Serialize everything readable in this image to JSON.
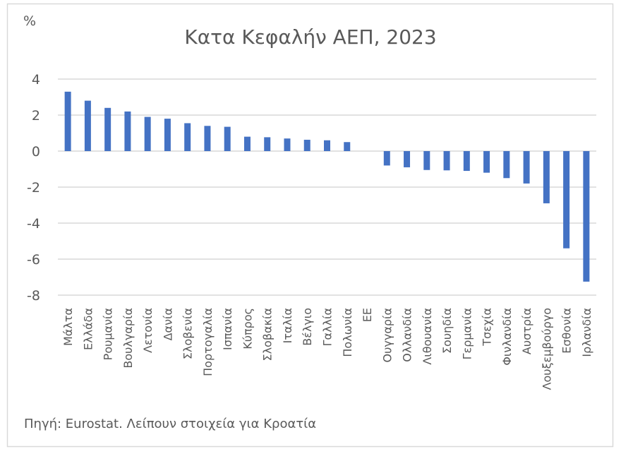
{
  "chart_data": {
    "type": "bar",
    "title": "Κατα Κεφαλήν ΑΕΠ, 2023",
    "ylabel": "%",
    "xlabel": "",
    "ylim": [
      -8,
      4
    ],
    "yticks": [
      4,
      2,
      0,
      -2,
      -4,
      -6,
      -8
    ],
    "grid": true,
    "bar_color": "#4472C4",
    "categories": [
      "Μάλτα",
      "Ελλάδα",
      "Ρουμανία",
      "Βουλγαρία",
      "Λετονία",
      "Δανία",
      "Σλοβενία",
      "Πορτογαλία",
      "Ισπανία",
      "Κύπρος",
      "Σλοβακία",
      "Ιταλία",
      "Βέλγιο",
      "Γαλλία",
      "Πολωνία",
      "ΕΕ",
      "Ουγγαρία",
      "Ολλανδία",
      "Λιθουανία",
      "Σουηδία",
      "Γερμανία",
      "Τσεχία",
      "Φινλανδία",
      "Αυστρία",
      "Λουξεμβούργο",
      "Εσθονία",
      "Ιρλανδία"
    ],
    "values": [
      3.3,
      2.8,
      2.4,
      2.2,
      1.9,
      1.8,
      1.55,
      1.4,
      1.35,
      0.8,
      0.77,
      0.7,
      0.63,
      0.6,
      0.5,
      0,
      -0.8,
      -0.9,
      -1.05,
      -1.07,
      -1.1,
      -1.2,
      -1.5,
      -1.8,
      -2.9,
      -5.4,
      -7.25
    ],
    "source_note": "Πηγή: Eurostat. Λείπουν στοιχεία για Κροατία"
  }
}
